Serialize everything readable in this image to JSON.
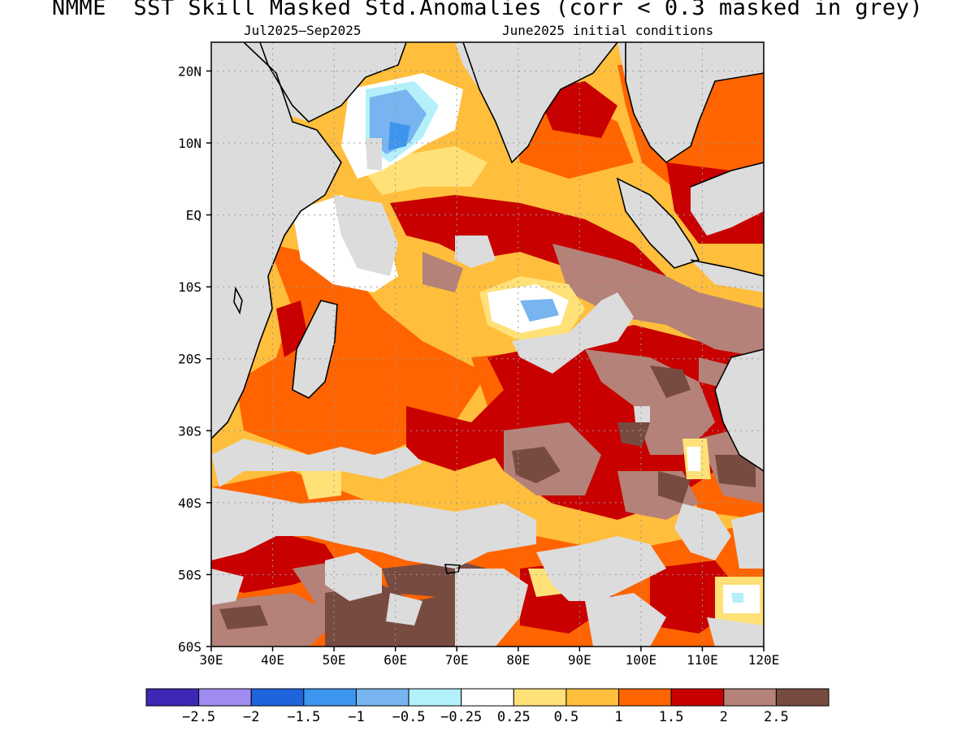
{
  "title": "NMME  SST Skill Masked Std.Anomalies (corr < 0.3 masked in grey)",
  "subtitle_left": "Jul2025—Sep2025",
  "subtitle_right": "June2025 initial conditions",
  "map": {
    "region": "Indian Ocean",
    "lon_range": [
      30,
      120
    ],
    "lat_range": [
      -60,
      24
    ],
    "x_ticks": [
      "30E",
      "40E",
      "50E",
      "60E",
      "70E",
      "80E",
      "90E",
      "100E",
      "110E",
      "120E"
    ],
    "y_ticks": [
      "20N",
      "10N",
      "EQ",
      "10S",
      "20S",
      "30S",
      "40S",
      "50S",
      "60S"
    ],
    "grid": true,
    "mask_color": "#dcdcdc",
    "land_color": "#dcdcdc"
  },
  "colorbar": {
    "colors": [
      "#3c28b4",
      "#a08cf0",
      "#1e64dc",
      "#3c96f0",
      "#78b4f0",
      "#b4f0fa",
      "#ffffff",
      "#ffe178",
      "#ffbe3c",
      "#ff6400",
      "#c80000",
      "#b48278",
      "#784b41"
    ],
    "labels": [
      "-2.5",
      "-2",
      "-1.5",
      "-1",
      "-0.5",
      "-0.25",
      "0.25",
      "0.5",
      "1",
      "1.5",
      "2",
      "2.5"
    ]
  }
}
